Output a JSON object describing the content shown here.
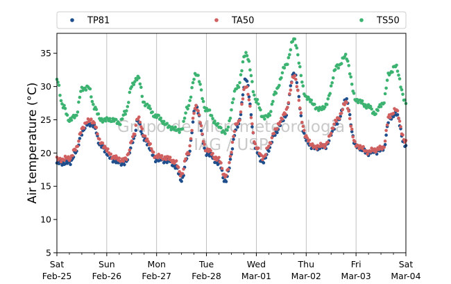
{
  "chart_data": {
    "type": "scatter",
    "title": "",
    "xlabel": "",
    "ylabel": "Air temperature (°C)",
    "ylim": [
      5,
      38
    ],
    "yticks": [
      5,
      10,
      15,
      20,
      25,
      30,
      35
    ],
    "xlim": [
      "2023-02-25T00:00",
      "2023-03-04T00:00"
    ],
    "grid": "vertical lines at day ticks",
    "legend_position": "top, outside plot, horizontal",
    "x_tick_labels": [
      [
        "Sat",
        "Feb-25"
      ],
      [
        "Sun",
        "Feb-26"
      ],
      [
        "Mon",
        "Feb-27"
      ],
      [
        "Tue",
        "Feb-28"
      ],
      [
        "Wed",
        "Mar-01"
      ],
      [
        "Thu",
        "Mar-02"
      ],
      [
        "Fri",
        "Mar-03"
      ],
      [
        "Sat",
        "Mar-04"
      ]
    ],
    "watermark": [
      "Grupo de Micrometeorologia",
      "IAG / USP"
    ],
    "series": [
      {
        "name": "TP81",
        "color": "#1f4e8c",
        "x": [
          "2023-02-25T00:00",
          "2023-02-25T06:00",
          "2023-02-25T09:00",
          "2023-02-25T12:00",
          "2023-02-25T15:00",
          "2023-02-25T18:00",
          "2023-02-25T21:00",
          "2023-02-26T03:00",
          "2023-02-26T06:00",
          "2023-02-26T09:00",
          "2023-02-26T13:00",
          "2023-02-26T15:00",
          "2023-02-26T18:00",
          "2023-02-27T00:00",
          "2023-02-27T06:00",
          "2023-02-27T09:00",
          "2023-02-27T12:00",
          "2023-02-27T15:00",
          "2023-02-27T19:00",
          "2023-02-28T00:00",
          "2023-02-28T06:00",
          "2023-02-28T09:00",
          "2023-02-28T15:00",
          "2023-02-28T19:00",
          "2023-03-01T00:00",
          "2023-03-01T03:00",
          "2023-03-01T06:00",
          "2023-03-01T09:00",
          "2023-03-01T14:00",
          "2023-03-01T18:00",
          "2023-03-02T00:00",
          "2023-03-02T03:00",
          "2023-03-02T06:00",
          "2023-03-02T09:00",
          "2023-03-02T15:00",
          "2023-03-02T19:00",
          "2023-03-03T00:00",
          "2023-03-03T06:00",
          "2023-03-03T09:00",
          "2023-03-03T13:00",
          "2023-03-03T16:00",
          "2023-03-03T19:00",
          "2023-03-04T00:00"
        ],
        "y": [
          18.5,
          18.5,
          20,
          23,
          24.5,
          24,
          21,
          19,
          18.5,
          18.5,
          22,
          25,
          22,
          19,
          18.8,
          18,
          16,
          19.5,
          27,
          20,
          18.5,
          15.8,
          24,
          31,
          20.5,
          18.5,
          20.5,
          23,
          25.5,
          32,
          22,
          20.8,
          20.8,
          21,
          24.5,
          28,
          21,
          20,
          20.2,
          20.5,
          25,
          26,
          21
        ]
      },
      {
        "name": "TA50",
        "color": "#d06060",
        "x": [
          "2023-02-25T00:00",
          "2023-02-25T06:00",
          "2023-02-25T09:00",
          "2023-02-25T12:00",
          "2023-02-25T15:00",
          "2023-02-25T18:00",
          "2023-02-25T21:00",
          "2023-02-26T03:00",
          "2023-02-26T06:00",
          "2023-02-26T09:00",
          "2023-02-26T13:00",
          "2023-02-26T15:00",
          "2023-02-26T18:00",
          "2023-02-27T00:00",
          "2023-02-27T06:00",
          "2023-02-27T09:00",
          "2023-02-27T12:00",
          "2023-02-27T15:00",
          "2023-02-27T19:00",
          "2023-02-28T00:00",
          "2023-02-28T06:00",
          "2023-02-28T09:00",
          "2023-02-28T15:00",
          "2023-02-28T19:00",
          "2023-03-01T00:00",
          "2023-03-01T03:00",
          "2023-03-01T06:00",
          "2023-03-01T09:00",
          "2023-03-01T14:00",
          "2023-03-01T18:00",
          "2023-03-02T00:00",
          "2023-03-02T03:00",
          "2023-03-02T06:00",
          "2023-03-02T09:00",
          "2023-03-02T15:00",
          "2023-03-02T19:00",
          "2023-03-03T00:00",
          "2023-03-03T06:00",
          "2023-03-03T09:00",
          "2023-03-03T13:00",
          "2023-03-03T16:00",
          "2023-03-03T19:00",
          "2023-03-04T00:00"
        ],
        "y": [
          19,
          19.2,
          20.5,
          23.5,
          25,
          24.5,
          21.5,
          19.5,
          19,
          19,
          22.5,
          25.5,
          22.5,
          19.5,
          19.2,
          18.6,
          16.8,
          20,
          27,
          20.5,
          19,
          16.5,
          24.5,
          30,
          21,
          19.2,
          21,
          23.5,
          26,
          31.5,
          22.5,
          21,
          21,
          21.2,
          25,
          27.5,
          21.2,
          20.2,
          20.5,
          20.8,
          25.5,
          26.5,
          21.5
        ]
      },
      {
        "name": "TS50",
        "color": "#3cb371",
        "x": [
          "2023-02-25T00:00",
          "2023-02-25T03:00",
          "2023-02-25T06:00",
          "2023-02-25T09:00",
          "2023-02-25T12:00",
          "2023-02-25T15:00",
          "2023-02-25T18:00",
          "2023-02-25T21:00",
          "2023-02-26T03:00",
          "2023-02-26T06:00",
          "2023-02-26T09:00",
          "2023-02-26T12:00",
          "2023-02-26T15:00",
          "2023-02-26T18:00",
          "2023-02-27T00:00",
          "2023-02-27T06:00",
          "2023-02-27T09:00",
          "2023-02-27T12:00",
          "2023-02-27T15:00",
          "2023-02-27T19:00",
          "2023-02-28T00:00",
          "2023-02-28T06:00",
          "2023-02-28T09:00",
          "2023-02-28T15:00",
          "2023-02-28T19:00",
          "2023-03-01T00:00",
          "2023-03-01T03:00",
          "2023-03-01T06:00",
          "2023-03-01T09:00",
          "2023-03-01T14:00",
          "2023-03-01T18:00",
          "2023-03-02T00:00",
          "2023-03-02T03:00",
          "2023-03-02T06:00",
          "2023-03-02T09:00",
          "2023-03-02T15:00",
          "2023-03-02T19:00",
          "2023-03-03T00:00",
          "2023-03-03T06:00",
          "2023-03-03T09:00",
          "2023-03-03T13:00",
          "2023-03-03T16:00",
          "2023-03-03T19:00",
          "2023-03-04T00:00"
        ],
        "y": [
          31,
          27,
          25,
          25.5,
          29.5,
          30,
          27,
          25,
          25,
          24.5,
          26,
          30,
          31.5,
          27.5,
          25.5,
          24,
          23.5,
          23.5,
          27,
          32,
          26.5,
          24,
          23,
          30,
          35,
          28,
          25.5,
          25.5,
          29,
          33,
          37,
          28.5,
          27.5,
          26.5,
          27,
          33,
          34.5,
          28,
          27,
          26,
          27.5,
          32,
          33,
          27.5
        ]
      }
    ]
  }
}
